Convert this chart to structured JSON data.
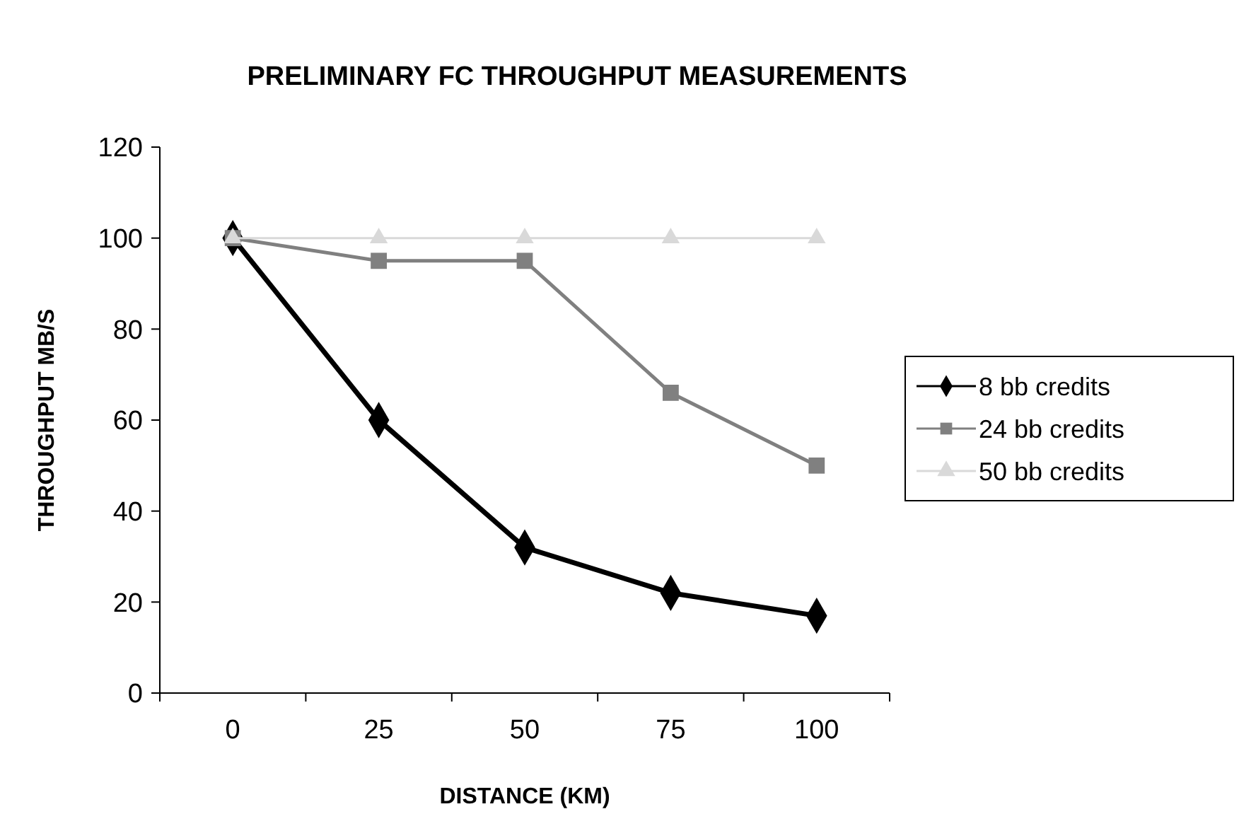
{
  "chart_data": {
    "type": "line",
    "title": "PRELIMINARY FC THROUGHPUT MEASUREMENTS",
    "xlabel": "DISTANCE (KM)",
    "ylabel": "THROUGHPUT MB/S",
    "categories": [
      "0",
      "25",
      "50",
      "75",
      "100"
    ],
    "ylim": [
      0,
      120
    ],
    "yticks": [
      0,
      20,
      40,
      60,
      80,
      100,
      120
    ],
    "grid": false,
    "legend": "right",
    "line_style": "solid",
    "series": [
      {
        "name": "8 bb credits",
        "color": "#000000",
        "marker": "diamond",
        "values": [
          100,
          60,
          32,
          22,
          17
        ]
      },
      {
        "name": "24 bb credits",
        "color": "#808080",
        "marker": "square",
        "values": [
          100,
          95,
          95,
          66,
          50
        ]
      },
      {
        "name": "50 bb credits",
        "color": "#d9d9d9",
        "marker": "triangle",
        "values": [
          100,
          100,
          100,
          100,
          100
        ]
      }
    ]
  }
}
